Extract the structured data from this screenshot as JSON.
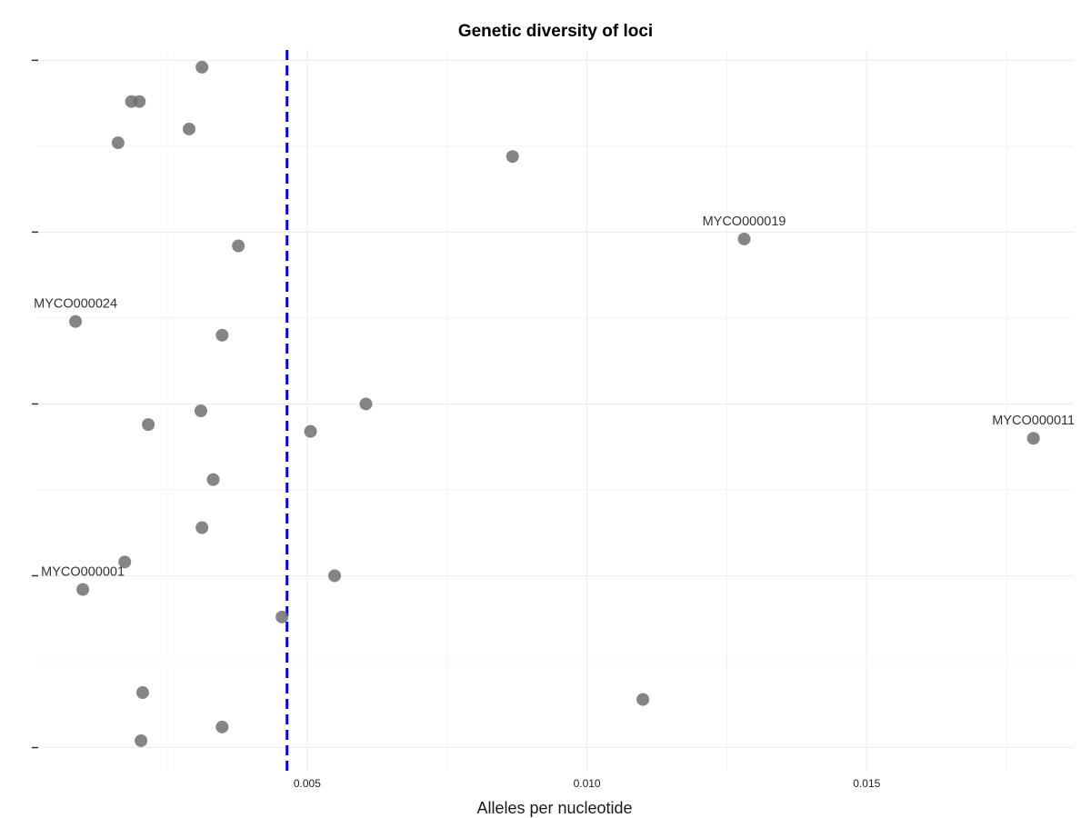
{
  "chart_data": {
    "type": "scatter",
    "title": "Genetic diversity of loci",
    "xlabel": "Alleles per nucleotide",
    "ylabel": "",
    "xlim": [
      0.00016,
      0.0187
    ],
    "ylim": [
      -1.4,
      40.6
    ],
    "x_ticks": [
      {
        "value": 0.005,
        "label": "0.005"
      },
      {
        "value": 0.01,
        "label": "0.010"
      },
      {
        "value": 0.015,
        "label": "0.015"
      }
    ],
    "x_minor_gridlines": [
      0.0025,
      0.0075,
      0.0125,
      0.0175
    ],
    "y_major_gridlines": [
      0,
      10,
      20,
      30,
      40
    ],
    "y_minor_gridlines": [
      5,
      15,
      25,
      35
    ],
    "grid": true,
    "reference_line": {
      "x": 0.00464,
      "color": "#0000ff",
      "style": "dashed"
    },
    "point_color": "#707070",
    "points": [
      {
        "x": 0.00312,
        "y": 39.6,
        "label": ""
      },
      {
        "x": 0.00186,
        "y": 37.6,
        "label": ""
      },
      {
        "x": 0.002,
        "y": 37.6,
        "label": ""
      },
      {
        "x": 0.00289,
        "y": 36.0,
        "label": ""
      },
      {
        "x": 0.00162,
        "y": 35.2,
        "label": ""
      },
      {
        "x": 0.00867,
        "y": 34.4,
        "label": ""
      },
      {
        "x": 0.01281,
        "y": 29.6,
        "label": "MYCO000019"
      },
      {
        "x": 0.00377,
        "y": 29.2,
        "label": ""
      },
      {
        "x": 0.00086,
        "y": 24.8,
        "label": "MYCO000024"
      },
      {
        "x": 0.00348,
        "y": 24.0,
        "label": ""
      },
      {
        "x": 0.00605,
        "y": 20.0,
        "label": ""
      },
      {
        "x": 0.0031,
        "y": 19.6,
        "label": ""
      },
      {
        "x": 0.00216,
        "y": 18.8,
        "label": ""
      },
      {
        "x": 0.00506,
        "y": 18.4,
        "label": ""
      },
      {
        "x": 0.01798,
        "y": 18.0,
        "label": "MYCO000011"
      },
      {
        "x": 0.00332,
        "y": 15.6,
        "label": ""
      },
      {
        "x": 0.00312,
        "y": 12.8,
        "label": ""
      },
      {
        "x": 0.00174,
        "y": 10.8,
        "label": ""
      },
      {
        "x": 0.00549,
        "y": 10.0,
        "label": ""
      },
      {
        "x": 0.00099,
        "y": 9.2,
        "label": "MYCO000001"
      },
      {
        "x": 0.00455,
        "y": 7.6,
        "label": ""
      },
      {
        "x": 0.00206,
        "y": 3.2,
        "label": ""
      },
      {
        "x": 0.011,
        "y": 2.8,
        "label": ""
      },
      {
        "x": 0.00348,
        "y": 1.2,
        "label": ""
      },
      {
        "x": 0.00203,
        "y": 0.4,
        "label": ""
      }
    ]
  }
}
